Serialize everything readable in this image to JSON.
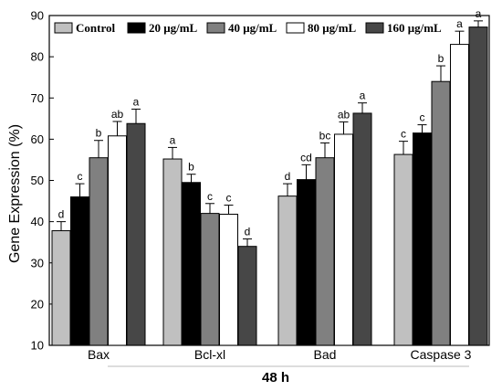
{
  "chart_data": {
    "type": "bar",
    "categories": [
      "Bax",
      "Bcl-xl",
      "Bad",
      "Caspase 3"
    ],
    "xlabel": "48 h",
    "ylabel": "Gene Expression (%)",
    "ylim": [
      10,
      90
    ],
    "yticks": [
      10,
      20,
      30,
      40,
      50,
      60,
      70,
      80,
      90
    ],
    "grid": false,
    "legend_position": "top",
    "series": [
      {
        "name": "Control",
        "color": "#c0c0c0",
        "values": [
          37.8,
          55.2,
          46.2,
          56.3
        ],
        "errors": [
          2.2,
          2.8,
          3.0,
          3.2
        ],
        "labels": [
          "d",
          "a",
          "d",
          "c"
        ]
      },
      {
        "name": "20 μg/mL",
        "color": "#000000",
        "values": [
          46.0,
          49.5,
          50.2,
          61.5
        ],
        "errors": [
          3.2,
          2.0,
          3.6,
          2.0
        ],
        "labels": [
          "c",
          "b",
          "cd",
          "c"
        ]
      },
      {
        "name": "40 μg/mL",
        "color": "#808080",
        "values": [
          55.5,
          42.0,
          55.5,
          74.0
        ],
        "errors": [
          4.2,
          2.4,
          3.6,
          3.8
        ],
        "labels": [
          "b",
          "c",
          "bc",
          "b"
        ]
      },
      {
        "name": "80 μg/mL",
        "color": "#ffffff",
        "values": [
          60.8,
          41.8,
          61.2,
          83.0
        ],
        "errors": [
          3.5,
          2.2,
          3.0,
          3.2
        ],
        "labels": [
          "ab",
          "c",
          "ab",
          "a"
        ]
      },
      {
        "name": "160 μg/mL",
        "color": "#474747",
        "values": [
          63.8,
          34.0,
          66.3,
          87.2
        ],
        "errors": [
          3.5,
          1.8,
          2.5,
          1.5
        ],
        "labels": [
          "a",
          "d",
          "a",
          "a"
        ]
      }
    ]
  }
}
